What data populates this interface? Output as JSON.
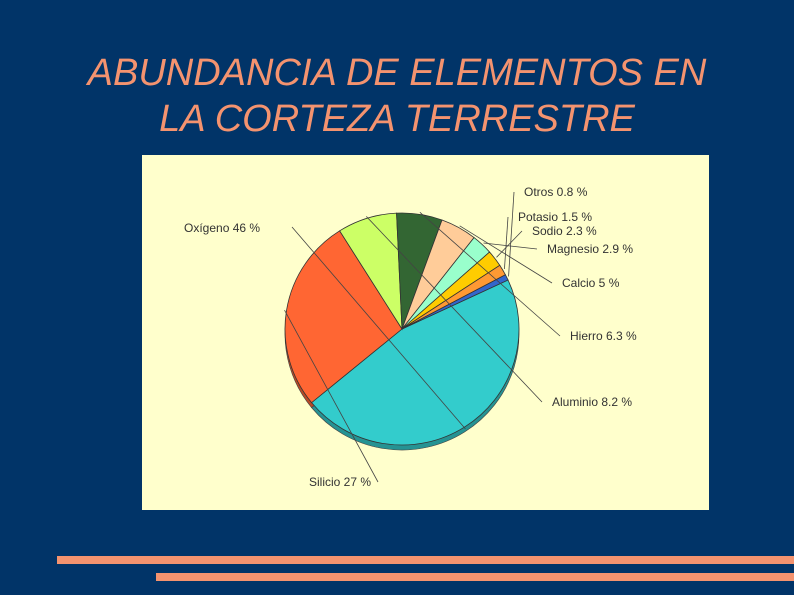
{
  "slide": {
    "title_line1": "ABUNDANCIA DE ELEMENTOS EN",
    "title_line2": "LA CORTEZA TERRESTRE",
    "title_color": "#f4936f",
    "background": "#013468",
    "panel_background": "#ffffcc"
  },
  "chart_data": {
    "type": "pie",
    "title": "",
    "unit": "%",
    "slices": [
      {
        "name": "Oxígeno",
        "value": 46,
        "label": "Oxígeno 46 %",
        "color": "#33cccc"
      },
      {
        "name": "Silicio",
        "value": 27,
        "label": "Silicio 27 %",
        "color": "#ff6633"
      },
      {
        "name": "Aluminio",
        "value": 8.2,
        "label": "Aluminio 8.2 %",
        "color": "#ccff66"
      },
      {
        "name": "Hierro",
        "value": 6.3,
        "label": "Hierro 6.3 %",
        "color": "#336633"
      },
      {
        "name": "Calcio",
        "value": 5,
        "label": "Calcio 5 %",
        "color": "#ffcc99"
      },
      {
        "name": "Magnesio",
        "value": 2.9,
        "label": "Magnesio 2.9 %",
        "color": "#99ffcc"
      },
      {
        "name": "Sodio",
        "value": 2.3,
        "label": "Sodio 2.3 %",
        "color": "#ffcc00"
      },
      {
        "name": "Potasio",
        "value": 1.5,
        "label": "Potasio 1.5 %",
        "color": "#ff9933"
      },
      {
        "name": "Otros",
        "value": 0.8,
        "label": "Otros 0.8 %",
        "color": "#3366cc"
      }
    ]
  }
}
